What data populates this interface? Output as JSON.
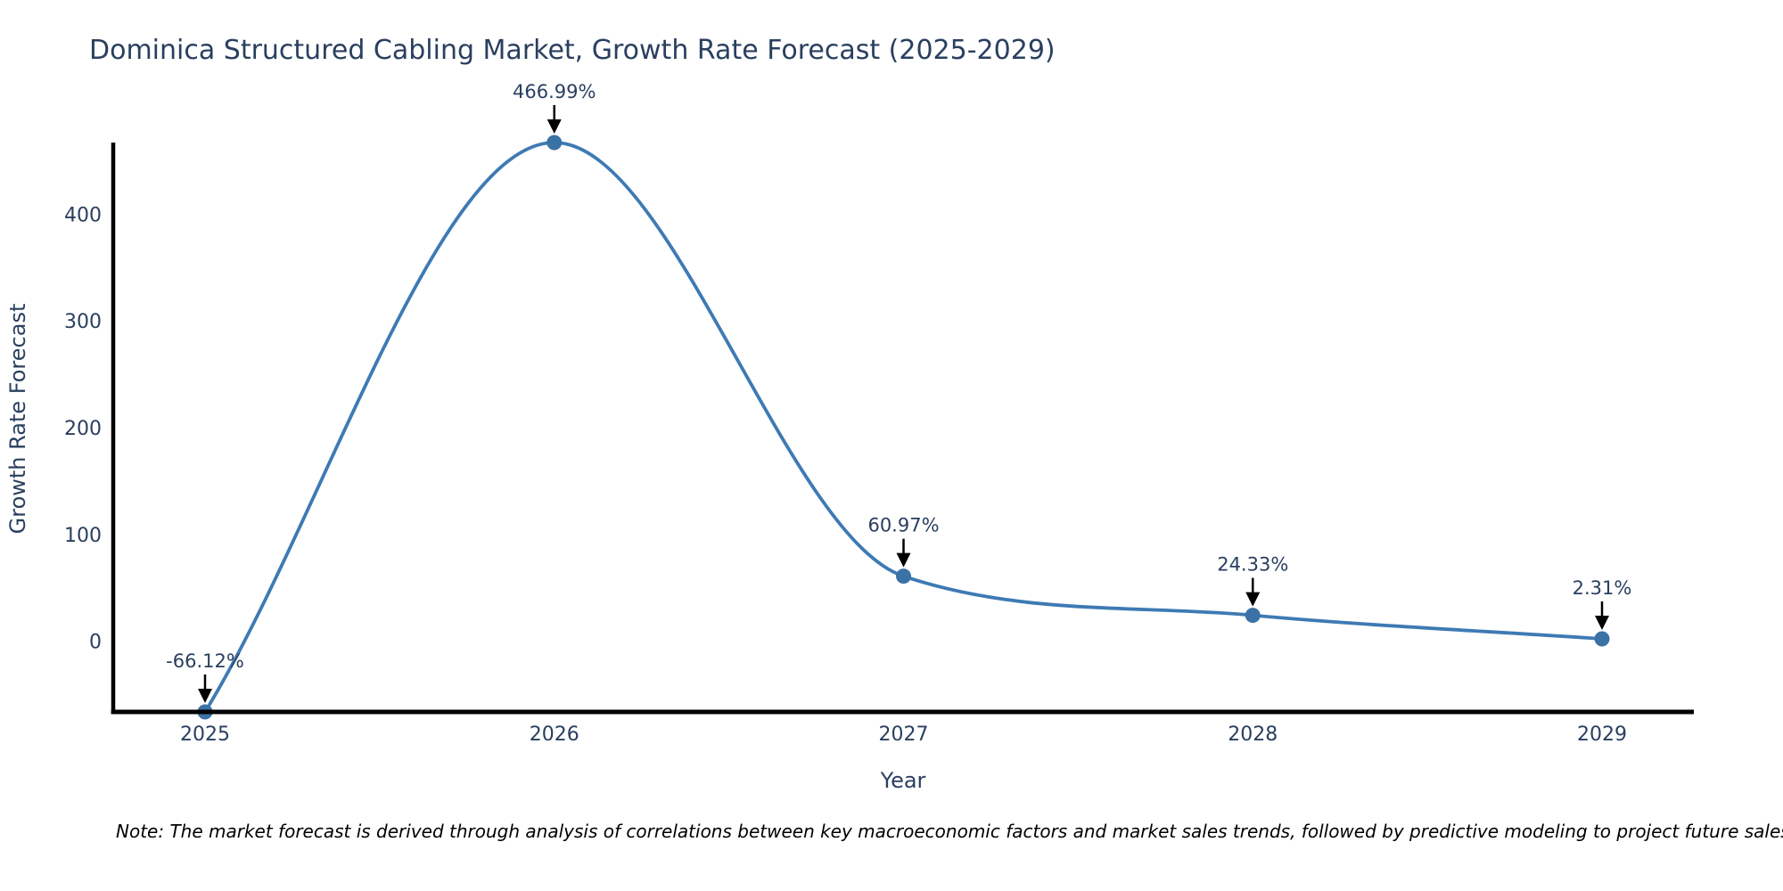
{
  "chart_data": {
    "type": "line",
    "title": "Dominica Structured Cabling Market, Growth Rate Forecast (2025-2029)",
    "xlabel": "Year",
    "ylabel": "Growth Rate Forecast",
    "categories": [
      "2025",
      "2026",
      "2027",
      "2028",
      "2029"
    ],
    "values": [
      -66.12,
      466.99,
      60.97,
      24.33,
      2.31
    ],
    "point_labels": [
      "-66.12%",
      "466.99%",
      "60.97%",
      "24.33%",
      "2.31%"
    ],
    "y_ticks": [
      0,
      100,
      200,
      300,
      400
    ],
    "ylim": [
      -66.12,
      466.99
    ],
    "line_shape": "spline",
    "grid": false,
    "legend": "none",
    "colors": {
      "line": "#3e7ab4",
      "marker": "#3a72a6",
      "text": "#2a3f5f",
      "axis": "#000000",
      "arrow": "#000000",
      "background": "#ffffff"
    }
  },
  "note": "Note: The market forecast is derived through analysis of correlations between key macroeconomic factors and market sales trends, followed by predictive modeling to project future sales."
}
